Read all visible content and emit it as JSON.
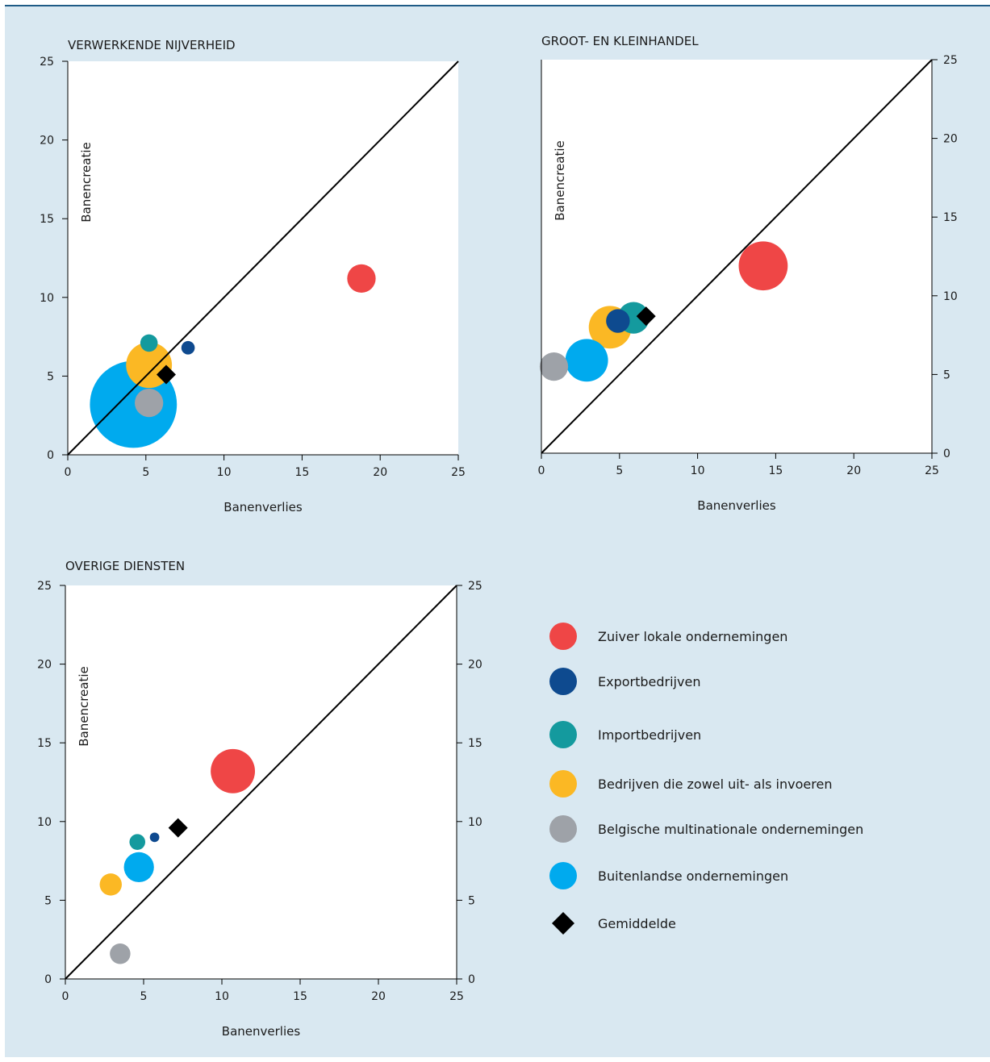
{
  "chart_data": [
    {
      "type": "bubble",
      "title": "VERWERKENDE NIJVERHEID",
      "xlabel": "Banenverlies",
      "ylabel": "Banencreatie",
      "xlim": [
        0,
        25
      ],
      "ylim": [
        0,
        25
      ],
      "xticks": [
        "0",
        "5",
        "10",
        "15",
        "20",
        "25"
      ],
      "yticks": [
        "0",
        "5",
        "10",
        "15",
        "20",
        "25"
      ],
      "y_axis_side": "left",
      "diagonal": true,
      "series": [
        {
          "key": "zuiver_lokaal",
          "x": 18.8,
          "y": 11.2,
          "size": 1.8
        },
        {
          "key": "buitenlands",
          "x": 4.2,
          "y": 3.2,
          "size": 5.5
        },
        {
          "key": "zowel",
          "x": 5.2,
          "y": 5.7,
          "size": 2.9
        },
        {
          "key": "belgisch_mn",
          "x": 5.2,
          "y": 3.3,
          "size": 1.8
        },
        {
          "key": "import",
          "x": 5.2,
          "y": 7.1,
          "size": 1.1
        },
        {
          "key": "export",
          "x": 7.7,
          "y": 6.8,
          "size": 0.85
        },
        {
          "key": "gemiddelde",
          "x": 6.3,
          "y": 5.1,
          "marker": "diamond"
        }
      ]
    },
    {
      "type": "bubble",
      "title": "GROOT- EN KLEINHANDEL",
      "xlabel": "Banenverlies",
      "ylabel": "Banencreatie",
      "xlim": [
        0,
        25
      ],
      "ylim": [
        0,
        25
      ],
      "xticks": [
        "0",
        "5",
        "10",
        "15",
        "20",
        "25"
      ],
      "yticks": [
        "0",
        "5",
        "10",
        "15",
        "20",
        "25"
      ],
      "y_axis_side": "right",
      "diagonal": true,
      "series": [
        {
          "key": "zuiver_lokaal",
          "x": 14.2,
          "y": 11.9,
          "size": 3.1
        },
        {
          "key": "zowel",
          "x": 4.4,
          "y": 8.0,
          "size": 2.7
        },
        {
          "key": "buitenlands",
          "x": 2.9,
          "y": 5.9,
          "size": 2.7
        },
        {
          "key": "import",
          "x": 5.9,
          "y": 8.6,
          "size": 2.0
        },
        {
          "key": "export",
          "x": 4.9,
          "y": 8.4,
          "size": 1.5
        },
        {
          "key": "belgisch_mn",
          "x": 0.8,
          "y": 5.5,
          "size": 1.8
        },
        {
          "key": "gemiddelde",
          "x": 6.7,
          "y": 8.7,
          "marker": "diamond"
        }
      ]
    },
    {
      "type": "bubble",
      "title": "OVERIGE DIENSTEN",
      "xlabel": "Banenverlies",
      "ylabel": "Banencreatie",
      "xlim": [
        0,
        25
      ],
      "ylim": [
        0,
        25
      ],
      "xticks": [
        "0",
        "5",
        "10",
        "15",
        "20",
        "25"
      ],
      "yticks": [
        "0",
        "5",
        "10",
        "15",
        "20",
        "25"
      ],
      "y_axis_side": "both",
      "diagonal": true,
      "series": [
        {
          "key": "zuiver_lokaal",
          "x": 10.7,
          "y": 13.2,
          "size": 2.8
        },
        {
          "key": "buitenlands",
          "x": 4.7,
          "y": 7.1,
          "size": 1.9
        },
        {
          "key": "zowel",
          "x": 2.9,
          "y": 6.0,
          "size": 1.4
        },
        {
          "key": "import",
          "x": 4.6,
          "y": 8.7,
          "size": 1.0
        },
        {
          "key": "export",
          "x": 5.7,
          "y": 9.0,
          "size": 0.6
        },
        {
          "key": "belgisch_mn",
          "x": 3.5,
          "y": 1.6,
          "size": 1.3
        },
        {
          "key": "gemiddelde",
          "x": 7.2,
          "y": 9.6,
          "marker": "diamond"
        }
      ]
    }
  ],
  "legend": [
    {
      "key": "zuiver_lokaal",
      "label": "Zuiver lokale ondernemingen",
      "color": "#ef4646",
      "marker": "circle"
    },
    {
      "key": "export",
      "label": "Exportbedrijven",
      "color": "#0e4a8f",
      "marker": "circle"
    },
    {
      "key": "import",
      "label": "Importbedrijven",
      "color": "#149a9e",
      "marker": "circle"
    },
    {
      "key": "zowel",
      "label": "Bedrijven die zowel uit- als invoeren",
      "color": "#fbb824",
      "marker": "circle"
    },
    {
      "key": "belgisch_mn",
      "label": "Belgische multinationale ondernemingen",
      "color": "#9ea2a8",
      "marker": "circle"
    },
    {
      "key": "buitenlands",
      "label": "Buitenlandse ondernemingen",
      "color": "#00aaee",
      "marker": "circle"
    },
    {
      "key": "gemiddelde",
      "label": "Gemiddelde",
      "color": "#000000",
      "marker": "diamond"
    }
  ]
}
